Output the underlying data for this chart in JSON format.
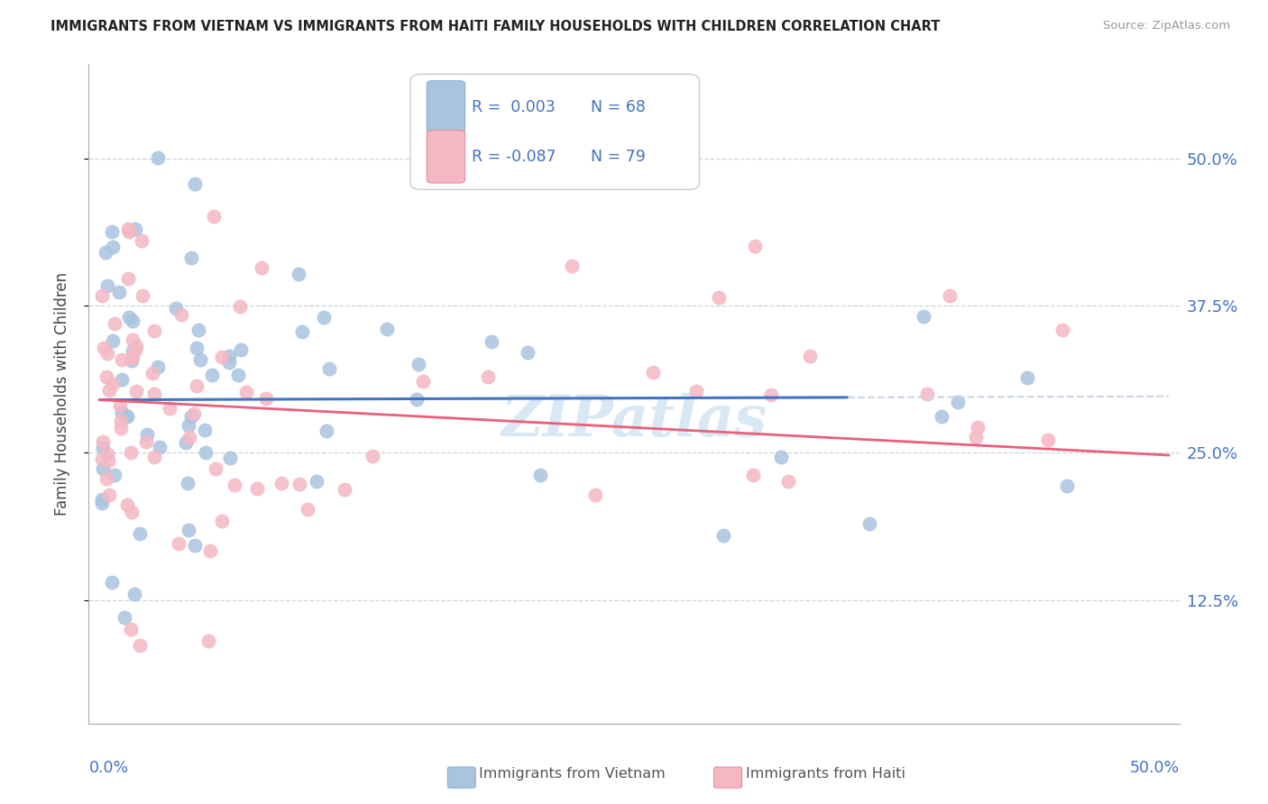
{
  "title": "IMMIGRANTS FROM VIETNAM VS IMMIGRANTS FROM HAITI FAMILY HOUSEHOLDS WITH CHILDREN CORRELATION CHART",
  "source": "Source: ZipAtlas.com",
  "ylabel": "Family Households with Children",
  "ytick_labels": [
    "12.5%",
    "25.0%",
    "37.5%",
    "50.0%"
  ],
  "ytick_values": [
    0.125,
    0.25,
    0.375,
    0.5
  ],
  "xlim": [
    -0.005,
    0.505
  ],
  "ylim": [
    0.02,
    0.58
  ],
  "color_vietnam": "#aac4e0",
  "color_haiti": "#f4b8c4",
  "color_vietnam_line": "#4472c4",
  "color_haiti_line": "#e8607a",
  "color_text_blue": "#4472c4",
  "color_grid": "#c8d4e0",
  "watermark": "ZIPatlas",
  "watermark_color": "#d8e8f4",
  "legend_items": [
    {
      "color": "#aac4e0",
      "border": "#8ab0d0",
      "text_r": "R =  0.003",
      "text_n": "N = 68"
    },
    {
      "color": "#f4b8c4",
      "border": "#e090a0",
      "text_r": "R = -0.087",
      "text_n": "N = 79"
    }
  ],
  "bottom_legend": [
    {
      "color": "#aac4e0",
      "border": "#8ab0d0",
      "label": "Immigrants from Vietnam"
    },
    {
      "color": "#f4b8c4",
      "border": "#e090a0",
      "label": "Immigrants from Haiti"
    }
  ]
}
